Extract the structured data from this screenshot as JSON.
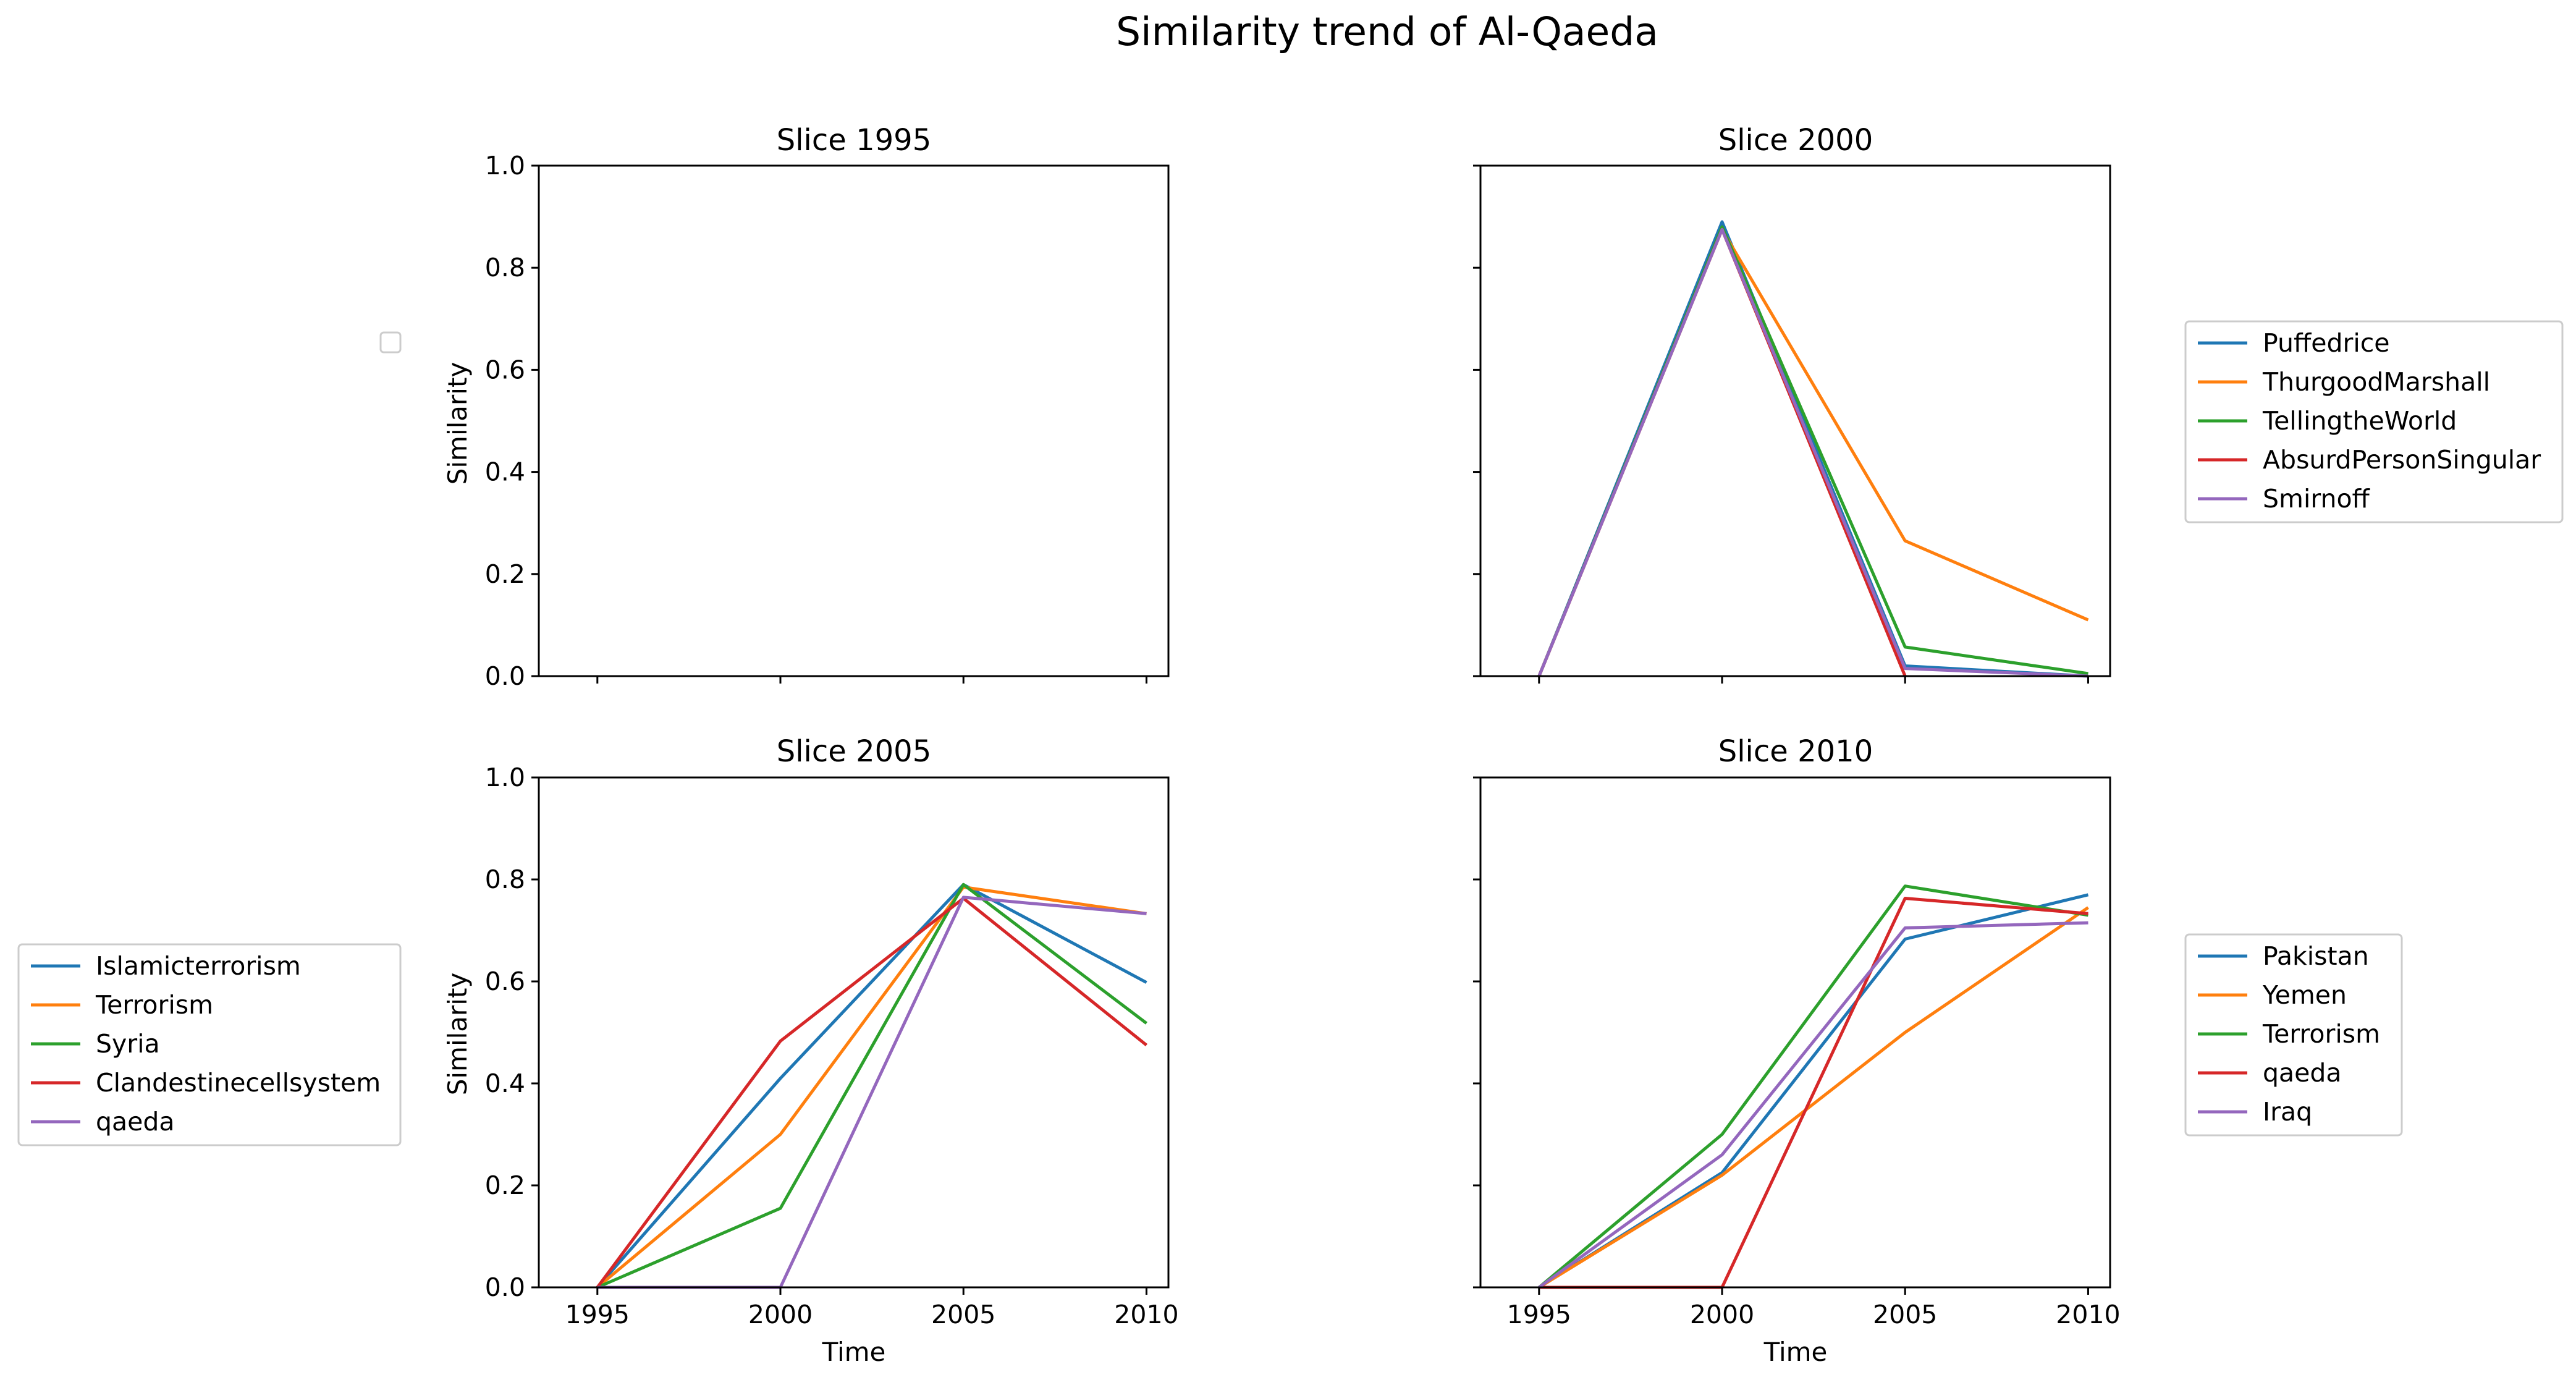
{
  "title": "Similarity trend of Al-Qaeda",
  "colors": [
    "#1f77b4",
    "#ff7f0e",
    "#2ca02c",
    "#d62728",
    "#9467bd"
  ],
  "chart_data": [
    {
      "type": "line",
      "title": "Slice 1995",
      "xlabel": "",
      "ylabel": "Similarity",
      "x": [
        1995,
        2000,
        2005,
        2010
      ],
      "xlim": [
        1993.4,
        2010.6
      ],
      "ylim": [
        0,
        1
      ],
      "yticks": [
        "0.0",
        "0.2",
        "0.4",
        "0.6",
        "0.8",
        "1.0"
      ],
      "xticklabels_shown": false,
      "yticklabels_shown": true,
      "legend": "left (empty)",
      "series": []
    },
    {
      "type": "line",
      "title": "Slice 2000",
      "xlabel": "",
      "ylabel": "",
      "x": [
        1995,
        2000,
        2005,
        2010
      ],
      "xlim": [
        1993.4,
        2010.6
      ],
      "ylim": [
        0,
        1
      ],
      "xticklabels_shown": false,
      "yticklabels_shown": false,
      "legend": "right",
      "series": [
        {
          "name": "Puffedrice",
          "values": [
            0.0,
            0.89,
            0.02,
            0.0
          ]
        },
        {
          "name": "ThurgoodMarshall",
          "values": [
            0.0,
            0.875,
            0.265,
            0.11
          ]
        },
        {
          "name": "TellingtheWorld",
          "values": [
            0.0,
            0.88,
            0.057,
            0.005
          ]
        },
        {
          "name": "AbsurdPersonSingular",
          "values": [
            0.0,
            0.875,
            0.0,
            null
          ]
        },
        {
          "name": "Smirnoff",
          "values": [
            0.0,
            0.875,
            0.015,
            0.0
          ]
        }
      ]
    },
    {
      "type": "line",
      "title": "Slice 2005",
      "xlabel": "Time",
      "ylabel": "Similarity",
      "x": [
        1995,
        2000,
        2005,
        2010
      ],
      "xticks": [
        "1995",
        "2000",
        "2005",
        "2010"
      ],
      "xlim": [
        1993.4,
        2010.6
      ],
      "ylim": [
        0,
        1
      ],
      "yticks": [
        "0.0",
        "0.2",
        "0.4",
        "0.6",
        "0.8",
        "1.0"
      ],
      "xticklabels_shown": true,
      "yticklabels_shown": true,
      "legend": "left",
      "series": [
        {
          "name": "Islamicterrorism",
          "values": [
            0.0,
            0.41,
            0.79,
            0.598
          ]
        },
        {
          "name": "Terrorism",
          "values": [
            0.0,
            0.3,
            0.785,
            0.733
          ]
        },
        {
          "name": "Syria",
          "values": [
            0.0,
            0.155,
            0.79,
            0.518
          ]
        },
        {
          "name": "Clandestinecellsystem",
          "values": [
            0.0,
            0.483,
            0.763,
            0.475
          ]
        },
        {
          "name": "qaeda",
          "values": [
            0.0,
            0.0,
            0.765,
            0.733
          ]
        }
      ]
    },
    {
      "type": "line",
      "title": "Slice 2010",
      "xlabel": "Time",
      "ylabel": "",
      "x": [
        1995,
        2000,
        2005,
        2010
      ],
      "xticks": [
        "1995",
        "2000",
        "2005",
        "2010"
      ],
      "xlim": [
        1993.4,
        2010.6
      ],
      "ylim": [
        0,
        1
      ],
      "xticklabels_shown": true,
      "yticklabels_shown": false,
      "legend": "right",
      "series": [
        {
          "name": "Pakistan",
          "values": [
            0.0,
            0.225,
            0.683,
            0.77
          ]
        },
        {
          "name": "Yemen",
          "values": [
            0.0,
            0.22,
            0.5,
            0.745
          ]
        },
        {
          "name": "Terrorism",
          "values": [
            0.0,
            0.3,
            0.787,
            0.73
          ]
        },
        {
          "name": "qaeda",
          "values": [
            0.0,
            0.0,
            0.763,
            0.733
          ]
        },
        {
          "name": "Iraq",
          "values": [
            0.0,
            0.26,
            0.705,
            0.715
          ]
        }
      ]
    }
  ]
}
